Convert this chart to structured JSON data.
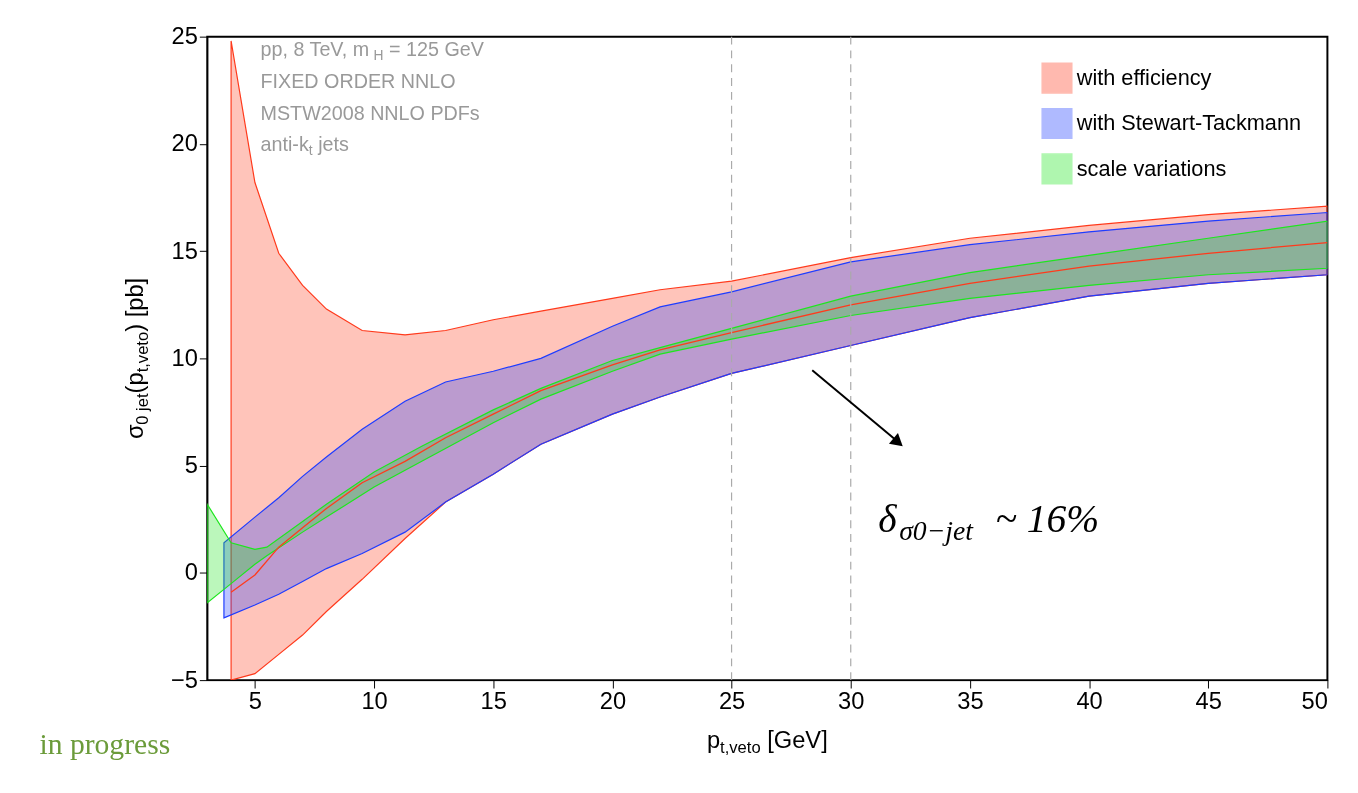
{
  "chart_data": {
    "type": "line",
    "xlabel": "p$_{t,veto}$ [GeV]",
    "ylabel": "σ$_{0 jet}$(p$_{t,veto}$) [pb]",
    "xlim": [
      3,
      50
    ],
    "xticks": [
      5,
      10,
      15,
      20,
      25,
      30,
      35,
      40,
      45,
      50
    ],
    "ylim": [
      -5,
      25
    ],
    "yticks": [
      -5,
      0,
      5,
      10,
      15,
      20,
      25
    ],
    "grid": false,
    "legend": "top right",
    "series": [
      {
        "name": "with efficiency",
        "color": "#ff3a1c",
        "x": [
          4,
          5,
          6,
          7,
          8,
          9.5,
          11.3,
          13,
          15,
          17,
          20,
          22,
          25,
          30,
          35,
          40,
          45,
          50
        ],
        "values": [
          -0.9,
          -0.1,
          1.2,
          2.1,
          3.0,
          4.2,
          5.2,
          6.3,
          7.4,
          8.5,
          9.7,
          10.4,
          11.2,
          12.5,
          13.5,
          14.3,
          14.9,
          15.4
        ],
        "upper": [
          24.8,
          18.2,
          14.9,
          13.4,
          12.3,
          11.3,
          11.1,
          11.3,
          11.8,
          12.2,
          12.8,
          13.2,
          13.6,
          14.7,
          15.6,
          16.2,
          16.7,
          17.1
        ],
        "lower": [
          -5,
          -4.7,
          -3.8,
          -2.9,
          -1.8,
          -0.3,
          1.6,
          3.3,
          4.6,
          6.0,
          7.4,
          8.2,
          9.3,
          10.6,
          11.9,
          12.9,
          13.5,
          13.9
        ]
      },
      {
        "name": "with Stewart-Tackmann",
        "color": "#1e3cff",
        "x": [
          3.7,
          5,
          6,
          7,
          8,
          9.5,
          11.3,
          13,
          15,
          17,
          20,
          22,
          25,
          30,
          35,
          40,
          45,
          50
        ],
        "values": [
          null,
          null,
          null,
          null,
          null,
          null,
          null,
          null,
          null,
          null,
          null,
          null,
          null,
          null,
          null,
          null,
          null,
          null
        ],
        "upper": [
          1.4,
          2.6,
          3.5,
          4.5,
          5.4,
          6.7,
          8.0,
          8.9,
          9.4,
          10.0,
          11.5,
          12.4,
          13.1,
          14.5,
          15.3,
          15.9,
          16.4,
          16.8
        ],
        "lower": [
          -2.1,
          -1.5,
          -1.0,
          -0.4,
          0.2,
          0.9,
          1.9,
          3.3,
          4.6,
          6.0,
          7.4,
          8.2,
          9.3,
          10.6,
          11.9,
          12.9,
          13.5,
          13.9
        ]
      },
      {
        "name": "scale variations",
        "color": "#1ee61e",
        "x": [
          3,
          4,
          5,
          5.5,
          7,
          8,
          10,
          12,
          15,
          17,
          20,
          22,
          25,
          30,
          35,
          40,
          45,
          50
        ],
        "values": [
          null,
          null,
          null,
          null,
          null,
          null,
          null,
          null,
          null,
          null,
          null,
          null,
          null,
          null,
          null,
          null,
          null,
          null
        ],
        "upper": [
          3.2,
          1.4,
          1.1,
          1.2,
          2.4,
          3.2,
          4.7,
          5.9,
          7.6,
          8.6,
          9.9,
          10.5,
          11.4,
          12.9,
          14.0,
          14.8,
          15.6,
          16.4
        ],
        "lower": [
          -1.4,
          -0.5,
          0.4,
          0.8,
          1.9,
          2.6,
          4.0,
          5.2,
          7.0,
          8.1,
          9.4,
          10.2,
          10.9,
          12.0,
          12.8,
          13.4,
          13.9,
          14.2
        ]
      }
    ],
    "ref_lines": [
      {
        "axis": "x",
        "value": 25,
        "color": "#aaaaaa",
        "line_style": "dashed"
      },
      {
        "axis": "x",
        "value": 30,
        "color": "#aaaaaa",
        "line_style": "dashed"
      }
    ],
    "annotations": [
      "pp, 8 TeV, m$_{H}$ = 125 GeV",
      "FIXED ORDER NNLO",
      "MSTW2008 NNLO PDFs",
      "anti-k$_{t}$ jets",
      "δ$_{σ0−jet}$ ~ 16%",
      "in progress"
    ]
  }
}
